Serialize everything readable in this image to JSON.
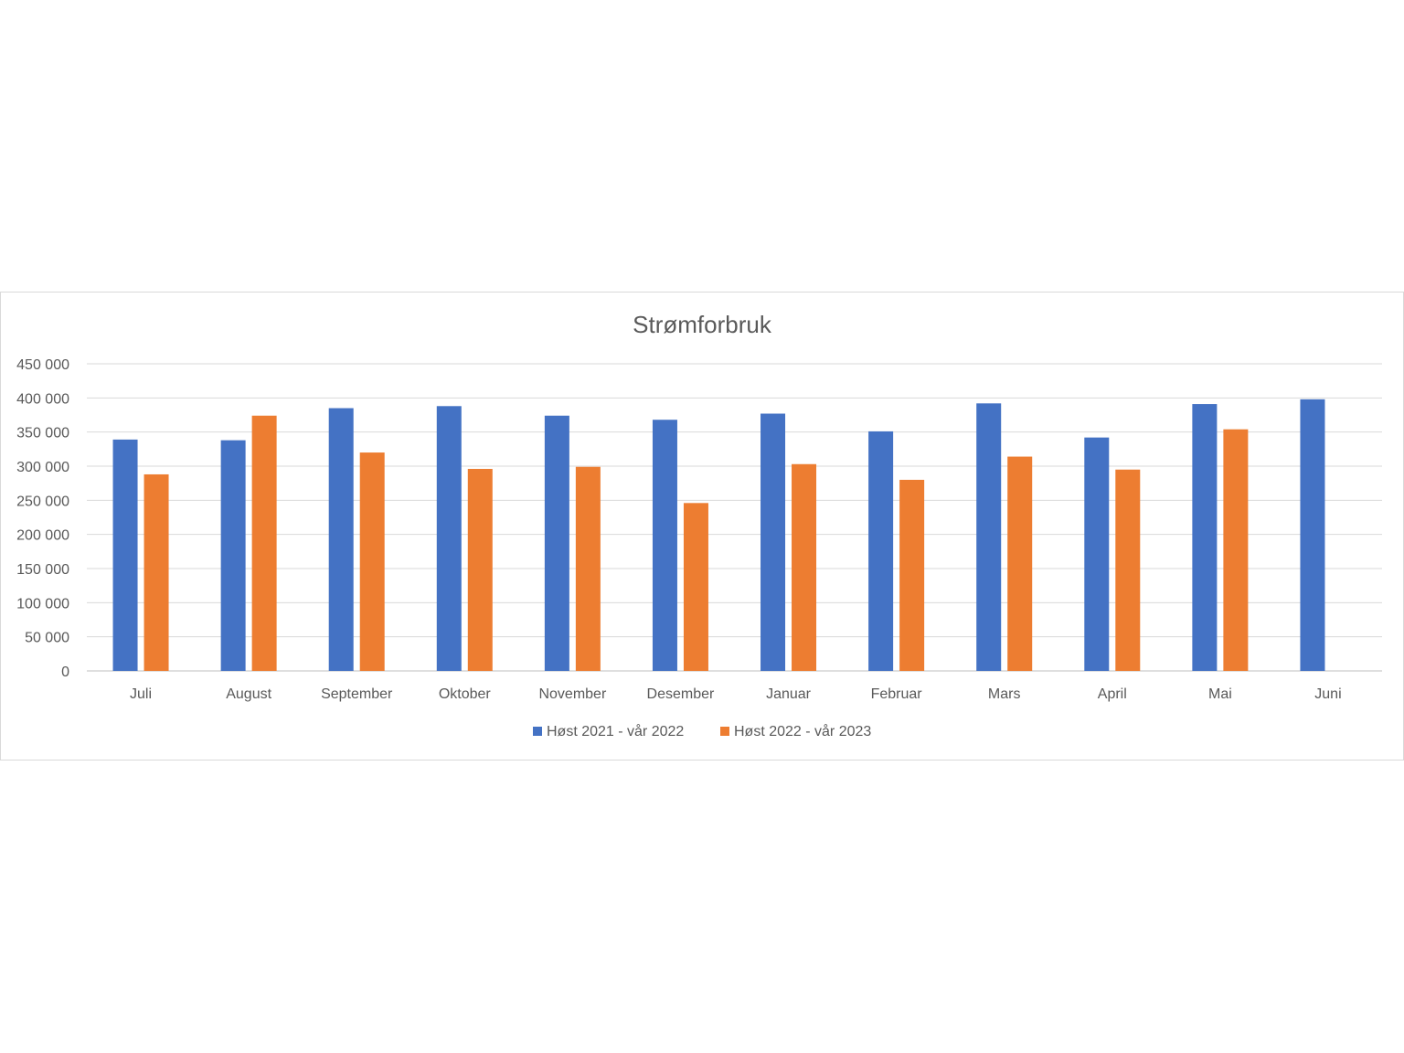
{
  "chart_data": {
    "type": "bar",
    "title": "Strømforbruk",
    "xlabel": "",
    "ylabel": "",
    "ylim": [
      0,
      450000
    ],
    "ytick_step": 50000,
    "yticks": [
      "0",
      "50 000",
      "100 000",
      "150 000",
      "200 000",
      "250 000",
      "300 000",
      "350 000",
      "400 000",
      "450 000"
    ],
    "categories": [
      "Juli",
      "August",
      "September",
      "Oktober",
      "November",
      "Desember",
      "Januar",
      "Februar",
      "Mars",
      "April",
      "Mai",
      "Juni"
    ],
    "series": [
      {
        "name": "Høst 2021 - vår 2022",
        "color": "#4472c4",
        "values": [
          339000,
          338000,
          385000,
          388000,
          374000,
          368000,
          377000,
          351000,
          392000,
          342000,
          391000,
          398000
        ]
      },
      {
        "name": "Høst 2022 - vår 2023",
        "color": "#ed7d31",
        "values": [
          288000,
          374000,
          320000,
          296000,
          299000,
          246000,
          303000,
          280000,
          314000,
          295000,
          354000,
          null
        ]
      }
    ],
    "grid": true,
    "legend_position": "bottom"
  }
}
